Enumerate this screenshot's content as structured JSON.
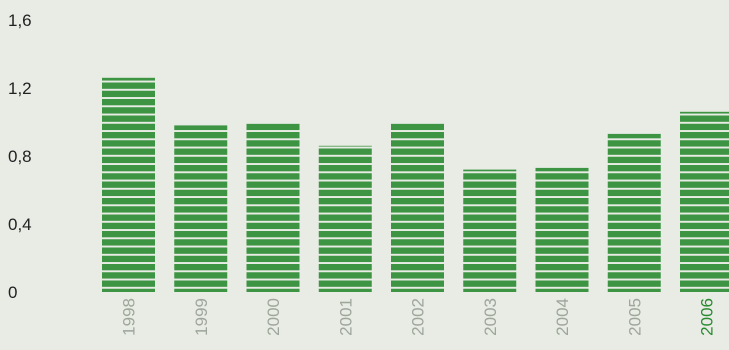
{
  "chart_data": {
    "type": "bar",
    "categories": [
      "1998",
      "1999",
      "2000",
      "2001",
      "2002",
      "2003",
      "2004",
      "2005",
      "2006"
    ],
    "values": [
      1.26,
      0.98,
      0.99,
      0.86,
      0.99,
      0.72,
      0.73,
      0.93,
      1.06
    ],
    "highlight_category": "2006",
    "ylim": [
      0,
      1.6
    ],
    "yticks": [
      {
        "value": 0,
        "label": "0"
      },
      {
        "value": 0.4,
        "label": "0,4"
      },
      {
        "value": 0.8,
        "label": "0,8"
      },
      {
        "value": 1.2,
        "label": "1,2"
      },
      {
        "value": 1.6,
        "label": "1,6"
      }
    ],
    "grid": false,
    "legend": "none",
    "title": "",
    "xlabel": "",
    "ylabel": "",
    "colors": {
      "bar": "#3d9443",
      "stripe": "#e8ece4",
      "tick_label": "#222222",
      "category_label": "#9ea59a",
      "highlight_label": "#2a8a31",
      "background": "#e8ece4"
    }
  }
}
